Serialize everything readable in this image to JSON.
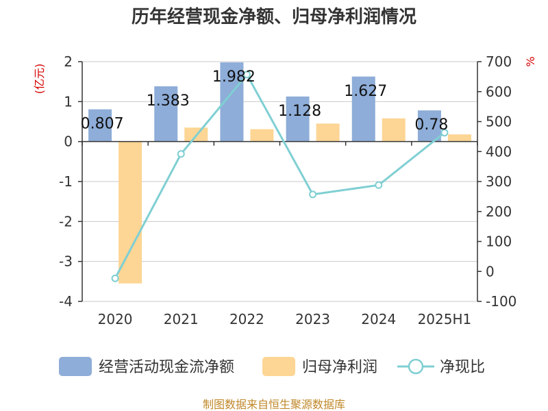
{
  "chart_data": {
    "type": "bar",
    "title": "历年经营现金净额、归母净利润情况",
    "categories": [
      "2020",
      "2021",
      "2022",
      "2023",
      "2024",
      "2025H1"
    ],
    "series": [
      {
        "name": "经营活动现金流净额",
        "type": "bar",
        "axis": "left",
        "color": "#8eadd8",
        "values": [
          0.807,
          1.383,
          1.982,
          1.128,
          1.627,
          0.78
        ],
        "labels": [
          "0.807",
          "1.383",
          "1.982",
          "1.128",
          "1.627",
          "0.78"
        ]
      },
      {
        "name": "归母净利润",
        "type": "bar",
        "axis": "left",
        "color": "#fdd594",
        "values": [
          -3.55,
          0.35,
          0.31,
          0.45,
          0.58,
          0.18
        ]
      },
      {
        "name": "净现比",
        "type": "line",
        "axis": "right",
        "color": "#7fcfd3",
        "values": [
          -23,
          392,
          657,
          257,
          288,
          463
        ]
      }
    ],
    "left_axis": {
      "unit": "(亿元)",
      "ylim": [
        -4,
        2
      ],
      "ticks": [
        2,
        1,
        0,
        -1,
        -2,
        -3,
        -4
      ],
      "tick_labels": [
        "2",
        "1",
        "0",
        "-1",
        "-2",
        "-3",
        "-4"
      ]
    },
    "right_axis": {
      "unit": "%",
      "ylim": [
        -100,
        700
      ],
      "ticks": [
        700,
        600,
        500,
        400,
        300,
        200,
        100,
        0,
        -100
      ],
      "tick_labels": [
        "700",
        "600",
        "500",
        "400",
        "300",
        "200",
        "100",
        "0",
        "-100"
      ]
    },
    "grid": true,
    "legend_position": "bottom",
    "source": "制图数据来自恒生聚源数据库"
  }
}
